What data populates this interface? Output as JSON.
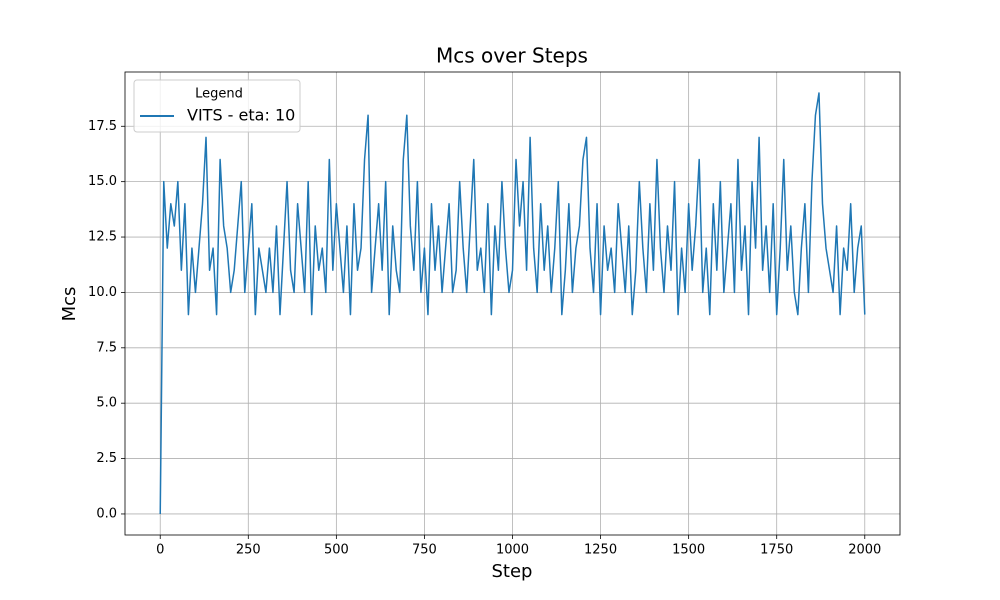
{
  "chart_data": {
    "type": "line",
    "title": "Mcs over Steps",
    "x_label": "Step",
    "y_label": "Mcs",
    "legend_title": "Legend",
    "legend": "upper left",
    "grid": true,
    "x": [
      0,
      10,
      20,
      30,
      40,
      50,
      60,
      70,
      80,
      90,
      100,
      110,
      120,
      130,
      140,
      150,
      160,
      170,
      180,
      190,
      200,
      210,
      220,
      230,
      240,
      250,
      260,
      270,
      280,
      290,
      300,
      310,
      320,
      330,
      340,
      350,
      360,
      370,
      380,
      390,
      400,
      410,
      420,
      430,
      440,
      450,
      460,
      470,
      480,
      490,
      500,
      510,
      520,
      530,
      540,
      550,
      560,
      570,
      580,
      590,
      600,
      610,
      620,
      630,
      640,
      650,
      660,
      670,
      680,
      690,
      700,
      710,
      720,
      730,
      740,
      750,
      760,
      770,
      780,
      790,
      800,
      810,
      820,
      830,
      840,
      850,
      860,
      870,
      880,
      890,
      900,
      910,
      920,
      930,
      940,
      950,
      960,
      970,
      980,
      990,
      1000,
      1010,
      1020,
      1030,
      1040,
      1050,
      1060,
      1070,
      1080,
      1090,
      1100,
      1110,
      1120,
      1130,
      1140,
      1150,
      1160,
      1170,
      1180,
      1190,
      1200,
      1210,
      1220,
      1230,
      1240,
      1250,
      1260,
      1270,
      1280,
      1290,
      1300,
      1310,
      1320,
      1330,
      1340,
      1350,
      1360,
      1370,
      1380,
      1390,
      1400,
      1410,
      1420,
      1430,
      1440,
      1450,
      1460,
      1470,
      1480,
      1490,
      1500,
      1510,
      1520,
      1530,
      1540,
      1550,
      1560,
      1570,
      1580,
      1590,
      1600,
      1610,
      1620,
      1630,
      1640,
      1650,
      1660,
      1670,
      1680,
      1690,
      1700,
      1710,
      1720,
      1730,
      1740,
      1750,
      1760,
      1770,
      1780,
      1790,
      1800,
      1810,
      1820,
      1830,
      1840,
      1850,
      1860,
      1870,
      1880,
      1890,
      1900,
      1910,
      1920,
      1930,
      1940,
      1950,
      1960,
      1970,
      1980,
      1990,
      2000
    ],
    "series": [
      {
        "name": "VITS - eta: 10",
        "color": "#1f77b4",
        "values": [
          0,
          15,
          12,
          14,
          13,
          15,
          11,
          14,
          9,
          12,
          10,
          12,
          14,
          17,
          11,
          12,
          9,
          16,
          13,
          12,
          10,
          11,
          13,
          15,
          10,
          12,
          14,
          9,
          12,
          11,
          10,
          12,
          10,
          13,
          9,
          12,
          15,
          11,
          10,
          14,
          12,
          10,
          15,
          9,
          13,
          11,
          12,
          10,
          16,
          11,
          14,
          12,
          10,
          13,
          9,
          14,
          11,
          12,
          16,
          18,
          10,
          12,
          14,
          11,
          15,
          9,
          13,
          11,
          10,
          16,
          18,
          13,
          11,
          15,
          10,
          12,
          9,
          14,
          11,
          13,
          10,
          12,
          14,
          10,
          11,
          15,
          12,
          10,
          13,
          16,
          11,
          12,
          10,
          14,
          9,
          13,
          11,
          15,
          12,
          10,
          11,
          16,
          13,
          15,
          11,
          17,
          12,
          10,
          14,
          11,
          13,
          10,
          12,
          15,
          9,
          11,
          14,
          10,
          12,
          13,
          16,
          17,
          12,
          10,
          14,
          9,
          13,
          11,
          12,
          10,
          14,
          12,
          10,
          13,
          9,
          11,
          15,
          12,
          10,
          14,
          11,
          16,
          12,
          10,
          13,
          11,
          15,
          9,
          12,
          10,
          14,
          11,
          13,
          16,
          10,
          12,
          9,
          14,
          11,
          15,
          10,
          12,
          14,
          10,
          16,
          11,
          13,
          9,
          15,
          12,
          17,
          11,
          13,
          10,
          14,
          9,
          12,
          16,
          11,
          13,
          10,
          9,
          12,
          14,
          10,
          15,
          18,
          19,
          14,
          12,
          11,
          10,
          13,
          9,
          12,
          11,
          14,
          10,
          12,
          13,
          9
        ]
      }
    ],
    "xlim": [
      -100,
      2100
    ],
    "xticks": [
      0,
      250,
      500,
      750,
      1000,
      1250,
      1500,
      1750,
      2000
    ],
    "ylim": [
      -0.95,
      19.95
    ],
    "yticks": [
      {
        "value": 0,
        "label": "0.0"
      },
      {
        "value": 2.5,
        "label": "2.5"
      },
      {
        "value": 5,
        "label": "5.0"
      },
      {
        "value": 7.5,
        "label": "7.5"
      },
      {
        "value": 10,
        "label": "10.0"
      },
      {
        "value": 12.5,
        "label": "12.5"
      },
      {
        "value": 15,
        "label": "15.0"
      },
      {
        "value": 17.5,
        "label": "17.5"
      }
    ]
  }
}
